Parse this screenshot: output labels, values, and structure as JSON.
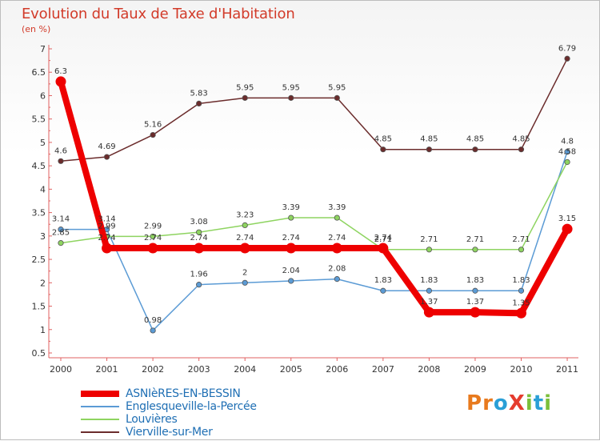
{
  "header": {
    "title": "Evolution du Taux de Taxe d'Habitation",
    "subtitle": "(en %)"
  },
  "logo": {
    "text": "ProXiti",
    "letters": [
      {
        "ch": "P",
        "color": "#e87a1e"
      },
      {
        "ch": "r",
        "color": "#e87a1e"
      },
      {
        "ch": "o",
        "color": "#2a9fd6"
      },
      {
        "ch": "X",
        "color": "#e53c2e"
      },
      {
        "ch": "i",
        "color": "#7bbf3a"
      },
      {
        "ch": "t",
        "color": "#2a9fd6"
      },
      {
        "ch": "i",
        "color": "#7bbf3a"
      }
    ]
  },
  "chart_data": {
    "type": "line",
    "title": "Evolution du Taux de Taxe d'Habitation",
    "subtitle": "(en %)",
    "xlabel": "",
    "ylabel": "",
    "x": [
      "2000",
      "2001",
      "2002",
      "2003",
      "2004",
      "2005",
      "2006",
      "2007",
      "2008",
      "2009",
      "2010",
      "2011"
    ],
    "ylim": [
      0.5,
      7
    ],
    "yticks": [
      "0.5",
      "1",
      "1.5",
      "2",
      "2.5",
      "3",
      "3.5",
      "4",
      "4.5",
      "5",
      "5.5",
      "6",
      "6.5",
      "7"
    ],
    "grid": false,
    "legend_position": "bottom-left",
    "series": [
      {
        "name": "ASNIèRES-EN-BESSIN",
        "color": "#ee0000",
        "emphasis": true,
        "values": [
          6.3,
          2.74,
          2.74,
          2.74,
          2.74,
          2.74,
          2.74,
          2.74,
          1.37,
          1.37,
          1.35,
          3.15
        ],
        "labels": [
          "6.3",
          "2.74",
          "2.74",
          "2.74",
          "2.74",
          "2.74",
          "2.74",
          "2.74",
          "1.37",
          "1.37",
          "1.35",
          "3.15"
        ]
      },
      {
        "name": "Englesqueville-la-Percée",
        "color": "#5b9bd5",
        "emphasis": false,
        "values": [
          3.14,
          3.14,
          0.98,
          1.96,
          2,
          2.04,
          2.08,
          1.83,
          1.83,
          1.83,
          1.83,
          4.8
        ],
        "labels": [
          "3.14",
          "3.14",
          "0.98",
          "1.96",
          "2",
          "2.04",
          "2.08",
          "1.83",
          "1.83",
          "1.83",
          "1.83",
          "4.8"
        ]
      },
      {
        "name": "Louvières",
        "color": "#8ed460",
        "emphasis": false,
        "values": [
          2.85,
          2.99,
          2.99,
          3.08,
          3.23,
          3.39,
          3.39,
          2.71,
          2.71,
          2.71,
          2.71,
          4.58
        ],
        "labels": [
          "2.85",
          "2.99",
          "2.99",
          "3.08",
          "3.23",
          "3.39",
          "3.39",
          "2.71",
          "2.71",
          "2.71",
          "2.71",
          "4.58"
        ]
      },
      {
        "name": "Vierville-sur-Mer",
        "color": "#6b2c2c",
        "emphasis": false,
        "values": [
          4.6,
          4.69,
          5.16,
          5.83,
          5.95,
          5.95,
          5.95,
          4.85,
          4.85,
          4.85,
          4.85,
          6.79
        ],
        "labels": [
          "4.6",
          "4.69",
          "5.16",
          "5.83",
          "5.95",
          "5.95",
          "5.95",
          "4.85",
          "4.85",
          "4.85",
          "4.85",
          "6.79"
        ]
      }
    ]
  }
}
